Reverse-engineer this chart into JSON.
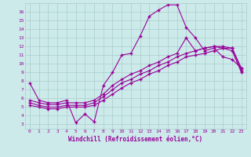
{
  "xlabel": "Windchill (Refroidissement éolien,°C)",
  "bg_color": "#cceaea",
  "grid_color": "#aacccc",
  "line_color": "#990099",
  "xlim": [
    -0.5,
    23.5
  ],
  "ylim": [
    2.5,
    17.0
  ],
  "xticks": [
    0,
    1,
    2,
    3,
    4,
    5,
    6,
    7,
    8,
    9,
    10,
    11,
    12,
    13,
    14,
    15,
    16,
    17,
    18,
    19,
    20,
    21,
    22,
    23
  ],
  "yticks": [
    3,
    4,
    5,
    6,
    7,
    8,
    9,
    10,
    11,
    12,
    13,
    14,
    15,
    16
  ],
  "series1_x": [
    0,
    1,
    2,
    3,
    4,
    5,
    6,
    7,
    8,
    9,
    10,
    11,
    12,
    13,
    14,
    15,
    16,
    17,
    18,
    19,
    20,
    21,
    22,
    23
  ],
  "series1_y": [
    7.8,
    5.8,
    5.5,
    5.5,
    5.8,
    3.2,
    4.2,
    3.3,
    7.5,
    9.0,
    11.0,
    11.2,
    13.2,
    15.5,
    16.2,
    16.8,
    16.8,
    14.2,
    13.0,
    11.5,
    11.8,
    10.8,
    10.5,
    9.5
  ],
  "series2_x": [
    0,
    1,
    2,
    3,
    4,
    5,
    6,
    7,
    8,
    9,
    10,
    11,
    12,
    13,
    14,
    15,
    16,
    17,
    18,
    19,
    20,
    21,
    22,
    23
  ],
  "series2_y": [
    5.8,
    5.5,
    5.3,
    5.3,
    5.5,
    5.5,
    5.5,
    5.8,
    6.5,
    7.5,
    8.2,
    8.8,
    9.2,
    9.8,
    10.2,
    10.8,
    11.2,
    13.0,
    11.5,
    11.8,
    12.0,
    11.8,
    11.8,
    9.5
  ],
  "series3_x": [
    0,
    1,
    2,
    3,
    4,
    5,
    6,
    7,
    8,
    9,
    10,
    11,
    12,
    13,
    14,
    15,
    16,
    17,
    18,
    19,
    20,
    21,
    22,
    23
  ],
  "series3_y": [
    5.5,
    5.2,
    5.0,
    5.0,
    5.2,
    5.2,
    5.2,
    5.5,
    6.2,
    7.0,
    7.8,
    8.2,
    8.8,
    9.2,
    9.8,
    10.2,
    10.8,
    11.2,
    11.5,
    11.8,
    12.0,
    12.0,
    11.8,
    9.2
  ],
  "series4_x": [
    0,
    1,
    2,
    3,
    4,
    5,
    6,
    7,
    8,
    9,
    10,
    11,
    12,
    13,
    14,
    15,
    16,
    17,
    18,
    19,
    20,
    21,
    22,
    23
  ],
  "series4_y": [
    5.2,
    5.0,
    4.8,
    4.8,
    5.0,
    5.0,
    5.0,
    5.2,
    5.8,
    6.5,
    7.2,
    7.8,
    8.2,
    8.8,
    9.2,
    9.8,
    10.2,
    10.8,
    11.0,
    11.2,
    11.5,
    11.8,
    11.5,
    9.0
  ]
}
